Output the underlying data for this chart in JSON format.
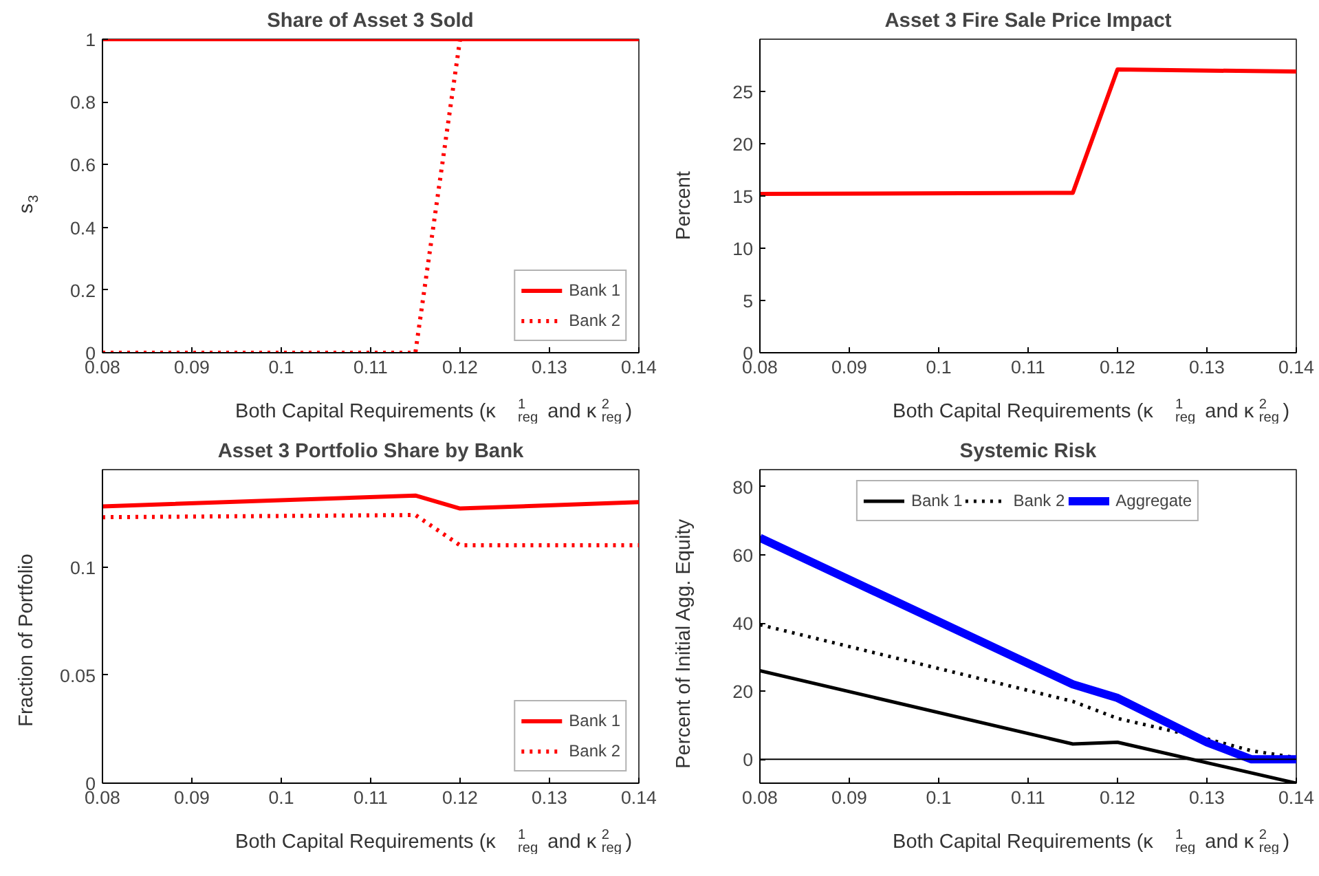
{
  "chart_data": [
    {
      "type": "line",
      "title": "Share of Asset 3 Sold",
      "xlabel": "Both Capital Requirements (κ$^{1}$$_{reg}$ and κ$^{2}$$_{reg}$)",
      "ylabel": "s$_{3}$",
      "xlim": [
        0.08,
        0.14
      ],
      "xticks": [
        0.08,
        0.09,
        0.1,
        0.11,
        0.12,
        0.13,
        0.14
      ],
      "ylim": [
        0,
        1
      ],
      "yticks": [
        0,
        0.2,
        0.4,
        0.6,
        0.8,
        1
      ],
      "legend": "bottom right",
      "grid": false,
      "series": [
        {
          "name": "Bank 1",
          "color": "#ff0000",
          "line_style": "solid",
          "x": [
            0.08,
            0.115,
            0.12,
            0.14
          ],
          "values": [
            1,
            1,
            1,
            1
          ]
        },
        {
          "name": "Bank 2",
          "color": "#ff0000",
          "line_style": "dotted",
          "x": [
            0.08,
            0.115,
            0.12,
            0.14
          ],
          "values": [
            0,
            0,
            1,
            1
          ]
        }
      ]
    },
    {
      "type": "line",
      "title": "Asset 3 Fire Sale Price Impact",
      "xlabel": "Both Capital Requirements (κ$^{1}$$_{reg}$ and κ$^{2}$$_{reg}$)",
      "ylabel": "Percent",
      "xlim": [
        0.08,
        0.14
      ],
      "xticks": [
        0.08,
        0.09,
        0.1,
        0.11,
        0.12,
        0.13,
        0.14
      ],
      "ylim": [
        0,
        30
      ],
      "yticks": [
        0,
        5,
        10,
        15,
        20,
        25
      ],
      "grid": false,
      "series": [
        {
          "color": "#ff0000",
          "line_style": "solid",
          "x": [
            0.08,
            0.115,
            0.12,
            0.14
          ],
          "values": [
            15.2,
            15.3,
            27.1,
            26.9
          ]
        }
      ]
    },
    {
      "type": "line",
      "title": "Asset 3 Portfolio Share by Bank",
      "xlabel": "Both Capital Requirements (κ$^{1}$$_{reg}$ and κ$^{2}$$_{reg}$)",
      "ylabel": "Fraction of Portfolio",
      "xlim": [
        0.08,
        0.14
      ],
      "xticks": [
        0.08,
        0.09,
        0.1,
        0.11,
        0.12,
        0.13,
        0.14
      ],
      "ylim": [
        0,
        0.145
      ],
      "yticks": [
        0,
        0.05,
        0.1
      ],
      "legend": "bottom right",
      "grid": false,
      "series": [
        {
          "name": "Bank 1",
          "color": "#ff0000",
          "line_style": "solid",
          "x": [
            0.08,
            0.115,
            0.12,
            0.14
          ],
          "values": [
            0.128,
            0.133,
            0.127,
            0.13
          ]
        },
        {
          "name": "Bank 2",
          "color": "#ff0000",
          "line_style": "dotted",
          "x": [
            0.08,
            0.115,
            0.12,
            0.14
          ],
          "values": [
            0.123,
            0.124,
            0.11,
            0.11
          ]
        }
      ]
    },
    {
      "type": "line",
      "title": "Systemic Risk",
      "xlabel": "Both Capital Requirements (κ$^{1}$$_{reg}$ and κ$^{2}$$_{reg}$)",
      "ylabel": "Percent of Initial Agg. Equity",
      "xlim": [
        0.08,
        0.14
      ],
      "xticks": [
        0.08,
        0.09,
        0.1,
        0.11,
        0.12,
        0.13,
        0.14
      ],
      "ylim": [
        -7,
        85
      ],
      "yticks": [
        0,
        20,
        40,
        60,
        80
      ],
      "legend": "top",
      "grid": false,
      "ref_lines": [
        {
          "axis": "y",
          "value": 0,
          "color": "#000000"
        }
      ],
      "series": [
        {
          "name": "Bank 1",
          "color": "#000000",
          "line_style": "solid",
          "x": [
            0.08,
            0.115,
            0.12,
            0.14
          ],
          "values": [
            26,
            4.5,
            5,
            -7
          ]
        },
        {
          "name": "Bank 2",
          "color": "#000000",
          "line_style": "dotted",
          "x": [
            0.08,
            0.115,
            0.12,
            0.13,
            0.135,
            0.14
          ],
          "values": [
            39.5,
            17,
            12,
            6,
            2.5,
            0.5
          ]
        },
        {
          "name": "Aggregate",
          "color": "#0000ff",
          "line_style": "solid",
          "x": [
            0.08,
            0.115,
            0.12,
            0.13,
            0.135,
            0.14
          ],
          "values": [
            65,
            22,
            18,
            5,
            0,
            0
          ]
        }
      ]
    }
  ]
}
